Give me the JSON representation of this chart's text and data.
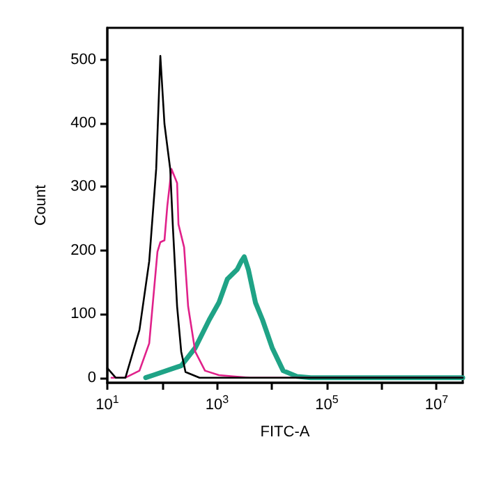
{
  "chart_data": {
    "type": "line",
    "xlabel": "FITC-A",
    "ylabel": "Count",
    "log": "x",
    "grid": false,
    "marker": "none",
    "line_style": "solid",
    "xlim": [
      10,
      30000000
    ],
    "ylim": [
      -8,
      550
    ],
    "xticks": [
      {
        "value": 10,
        "label": "10$^{1}$"
      },
      {
        "value": 100,
        "label": null
      },
      {
        "value": 1000,
        "label": "10$^{3}$"
      },
      {
        "value": 10000,
        "label": null
      },
      {
        "value": 100000,
        "label": "10$^{5}$"
      },
      {
        "value": 1000000,
        "label": null
      },
      {
        "value": 10000000,
        "label": "10$^{7}$"
      }
    ],
    "yticks": [
      0,
      100,
      200,
      300,
      400,
      500
    ],
    "series": [
      {
        "color": "#1fa386",
        "x": [
          50,
          69,
          223,
          401,
          720,
          1080,
          1540,
          2320,
          2770,
          3130,
          3720,
          5010,
          6730,
          10100,
          16000,
          28600,
          51000,
          30000000
        ],
        "values": [
          0,
          4,
          19,
          47,
          91,
          118,
          155,
          170,
          183,
          190,
          170,
          118,
          91,
          47,
          11,
          2,
          0,
          0
        ]
      },
      {
        "color": "#e0218a",
        "x": [
          11.9,
          21.4,
          38.5,
          58,
          82,
          92.5,
          110,
          124,
          148,
          187,
          198,
          251,
          297,
          400,
          603,
          1080,
          1940,
          4000,
          30000000
        ],
        "values": [
          0,
          0,
          11,
          54,
          198,
          213,
          216,
          270,
          328,
          306,
          241,
          205,
          112,
          41,
          11,
          4,
          2,
          0,
          0
        ]
      },
      {
        "color": "#000000",
        "x": [
          10,
          14.2,
          21.4,
          38.5,
          58,
          77.7,
          92.5,
          110,
          140,
          157,
          187,
          222,
          266,
          479,
          30000000
        ],
        "values": [
          15,
          0,
          0,
          75,
          183,
          328,
          506,
          399,
          328,
          235,
          112,
          41,
          9,
          0,
          0
        ]
      }
    ]
  }
}
